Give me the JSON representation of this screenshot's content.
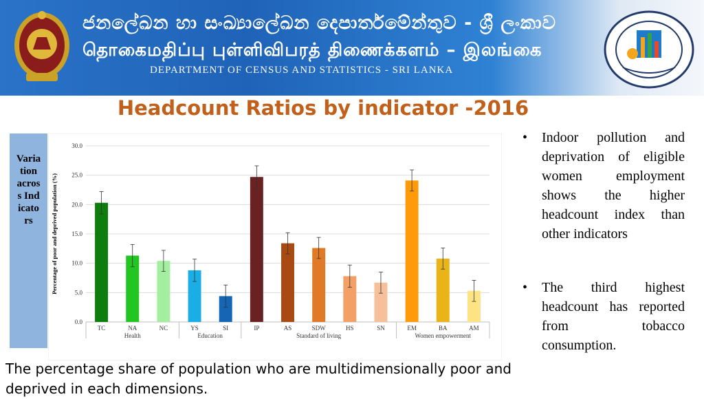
{
  "banner": {
    "sinhala": "ජනලේඛන හා සංඛ්‍යාලේඛන දෙපාර්තමේන්තුව - ශ්‍රී ලංකාව",
    "tamil": "தொகைமதிப்பு புள்ளிவிபரத் திணைக்களம் – இலங்கை",
    "english": "DEPARTMENT OF CENSUS AND STATISTICS - SRI LANKA",
    "bg_color": "#1f63b8"
  },
  "slide_title": "Headcount Ratios by indicator -2016",
  "side_label": "Variation across Indicators",
  "bullets": [
    "Indoor pollution and deprivation of eligible women employment shows the higher headcount index than other indicators",
    "The third highest headcount has reported from tobacco consumption."
  ],
  "caption": "The percentage share of population who are multidimensionally poor and deprived in each dimensions.",
  "chart_data": {
    "type": "bar",
    "ylabel": "Percentage of poor and deprived population (%)",
    "ylim": [
      0,
      30
    ],
    "yticks": [
      "0.0",
      "5.0",
      "10.0",
      "15.0",
      "20.0",
      "25.0",
      "30.0"
    ],
    "grid": true,
    "categories": [
      "TC",
      "NA",
      "NC",
      "YS",
      "SI",
      "IP",
      "AS",
      "SDW",
      "HS",
      "SN",
      "EM",
      "BA",
      "AM"
    ],
    "values": [
      20.3,
      11.3,
      10.4,
      8.8,
      4.4,
      24.7,
      13.4,
      12.6,
      7.8,
      6.7,
      24.1,
      10.8,
      5.3
    ],
    "error": [
      1.9,
      1.9,
      1.8,
      1.9,
      1.9,
      1.9,
      1.8,
      1.8,
      1.9,
      1.8,
      1.8,
      1.8,
      1.8
    ],
    "colors": [
      "#0e7d0e",
      "#22c522",
      "#a3ef9f",
      "#1aaee6",
      "#1565b5",
      "#6a2121",
      "#a84a12",
      "#e07a26",
      "#f2a066",
      "#f5c09a",
      "#ff9a0a",
      "#e8b418",
      "#fde384"
    ],
    "groups": [
      {
        "name": "Health",
        "count": 3
      },
      {
        "name": "Education",
        "count": 2
      },
      {
        "name": "Standard of living",
        "count": 5
      },
      {
        "name": "Women empowerment",
        "count": 3
      }
    ]
  }
}
